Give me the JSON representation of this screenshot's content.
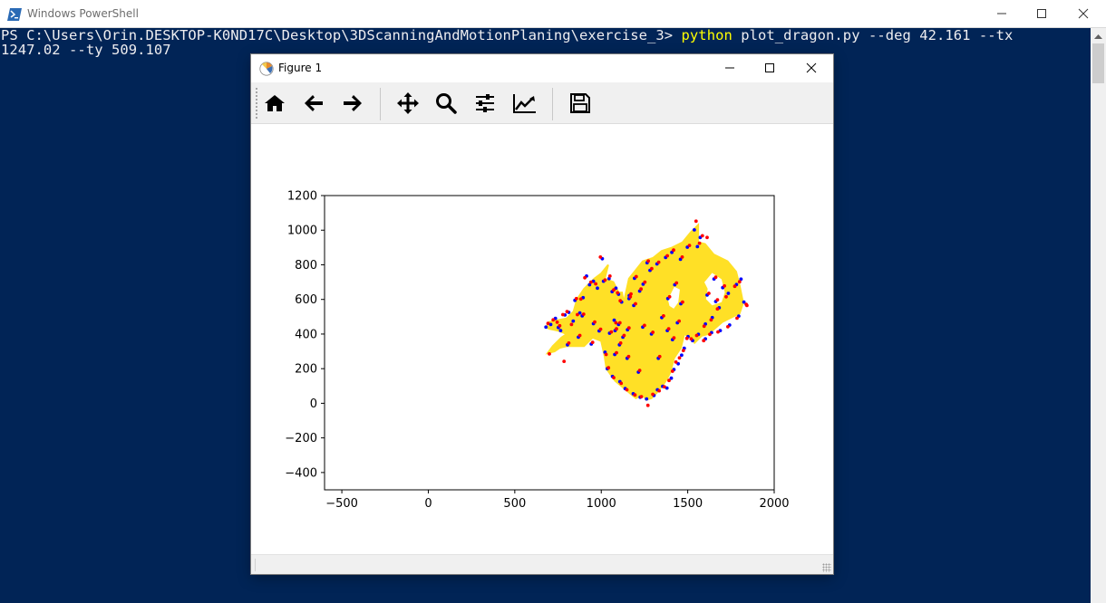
{
  "powershell": {
    "title": "Windows PowerShell",
    "prompt": "PS C:\\Users\\Orin.DESKTOP-K0ND17C\\Desktop\\3DScanningAndMotionPlaning\\exercise_3> ",
    "command_kw": "python",
    "command_rest_line1": " plot_dragon.py --deg 42.161 --tx",
    "command_rest_line2": "1247.02 --ty 509.107"
  },
  "figure": {
    "title": "Figure 1",
    "toolbar": [
      "home-icon",
      "back-icon",
      "forward-icon",
      "pan-icon",
      "zoom-icon",
      "configure-subplots-icon",
      "edit-axis-icon",
      "save-icon"
    ]
  },
  "colors": {
    "console_bg": "#012456",
    "dragon_fill": "#ffe026",
    "source_points": "#0000ff",
    "target_points": "#ff0000"
  },
  "chart_data": {
    "type": "scatter",
    "title": "",
    "xlabel": "",
    "ylabel": "",
    "xlim": [
      -600,
      2000
    ],
    "ylim": [
      -500,
      1200
    ],
    "xticks": [
      -500,
      0,
      500,
      1000,
      1500,
      2000
    ],
    "yticks": [
      -400,
      -200,
      0,
      200,
      400,
      600,
      800,
      1000,
      1200
    ],
    "xtick_labels": [
      "−500",
      "0",
      "500",
      "1000",
      "1500",
      "2000"
    ],
    "ytick_labels": [
      "−400",
      "−200",
      "0",
      "200",
      "400",
      "600",
      "800",
      "1000",
      "1200"
    ],
    "dragon_outline": [
      [
        680,
        440
      ],
      [
        700,
        470
      ],
      [
        750,
        480
      ],
      [
        800,
        490
      ],
      [
        840,
        530
      ],
      [
        860,
        600
      ],
      [
        900,
        660
      ],
      [
        960,
        720
      ],
      [
        1000,
        750
      ],
      [
        1040,
        800
      ],
      [
        1020,
        720
      ],
      [
        1070,
        700
      ],
      [
        1100,
        640
      ],
      [
        1120,
        640
      ],
      [
        1130,
        580
      ],
      [
        1160,
        720
      ],
      [
        1240,
        820
      ],
      [
        1300,
        840
      ],
      [
        1350,
        880
      ],
      [
        1410,
        900
      ],
      [
        1470,
        930
      ],
      [
        1520,
        990
      ],
      [
        1560,
        1030
      ],
      [
        1560,
        930
      ],
      [
        1600,
        920
      ],
      [
        1650,
        860
      ],
      [
        1730,
        820
      ],
      [
        1780,
        760
      ],
      [
        1800,
        680
      ],
      [
        1820,
        580
      ],
      [
        1800,
        520
      ],
      [
        1700,
        470
      ],
      [
        1620,
        400
      ],
      [
        1580,
        390
      ],
      [
        1540,
        350
      ],
      [
        1520,
        380
      ],
      [
        1480,
        400
      ],
      [
        1460,
        320
      ],
      [
        1420,
        260
      ],
      [
        1400,
        180
      ],
      [
        1380,
        140
      ],
      [
        1360,
        110
      ],
      [
        1320,
        60
      ],
      [
        1290,
        30
      ],
      [
        1260,
        20
      ],
      [
        1240,
        50
      ],
      [
        1200,
        30
      ],
      [
        1140,
        80
      ],
      [
        1080,
        130
      ],
      [
        1030,
        200
      ],
      [
        1020,
        270
      ],
      [
        1000,
        360
      ],
      [
        950,
        380
      ],
      [
        900,
        330
      ],
      [
        860,
        330
      ],
      [
        800,
        330
      ],
      [
        760,
        320
      ],
      [
        730,
        300
      ],
      [
        690,
        290
      ],
      [
        720,
        330
      ],
      [
        770,
        380
      ],
      [
        800,
        400
      ],
      [
        750,
        420
      ],
      [
        700,
        430
      ]
    ],
    "dragon_holes": [
      [
        [
          1590,
          700
        ],
        [
          1640,
          760
        ],
        [
          1700,
          720
        ],
        [
          1720,
          640
        ],
        [
          1700,
          580
        ],
        [
          1640,
          560
        ],
        [
          1600,
          600
        ],
        [
          1610,
          660
        ]
      ],
      [
        [
          1380,
          600
        ],
        [
          1420,
          680
        ],
        [
          1460,
          660
        ],
        [
          1450,
          580
        ],
        [
          1420,
          540
        ],
        [
          1390,
          560
        ]
      ]
    ],
    "series": [
      {
        "values": [
          [
            680,
            440
          ],
          [
            708,
            455
          ],
          [
            735,
            490
          ],
          [
            765,
            420
          ],
          [
            790,
            510
          ],
          [
            812,
            525
          ],
          [
            838,
            475
          ],
          [
            876,
            522
          ],
          [
            895,
            610
          ],
          [
            915,
            735
          ],
          [
            932,
            685
          ],
          [
            955,
            705
          ],
          [
            978,
            665
          ],
          [
            1006,
            835
          ],
          [
            1013,
            705
          ],
          [
            1045,
            720
          ],
          [
            1063,
            645
          ],
          [
            1085,
            665
          ],
          [
            1100,
            630
          ],
          [
            1118,
            585
          ],
          [
            1075,
            480
          ],
          [
            1048,
            405
          ],
          [
            1022,
            295
          ],
          [
            1035,
            200
          ],
          [
            1065,
            155
          ],
          [
            1108,
            125
          ],
          [
            1138,
            85
          ],
          [
            1185,
            55
          ],
          [
            1225,
            35
          ],
          [
            1262,
            25
          ],
          [
            1305,
            45
          ],
          [
            1325,
            78
          ],
          [
            1355,
            98
          ],
          [
            1380,
            88
          ],
          [
            1405,
            145
          ],
          [
            1420,
            195
          ],
          [
            1445,
            228
          ],
          [
            1465,
            278
          ],
          [
            1480,
            318
          ],
          [
            1502,
            385
          ],
          [
            1528,
            362
          ],
          [
            1562,
            398
          ],
          [
            1602,
            458
          ],
          [
            1642,
            495
          ],
          [
            1682,
            552
          ],
          [
            1735,
            635
          ],
          [
            1782,
            686
          ],
          [
            1808,
            717
          ],
          [
            1825,
            585
          ],
          [
            1795,
            504
          ],
          [
            1742,
            452
          ],
          [
            1688,
            420
          ],
          [
            1638,
            408
          ],
          [
            1602,
            372
          ],
          [
            1556,
            905
          ],
          [
            1572,
            958
          ],
          [
            1538,
            1002
          ],
          [
            1498,
            902
          ],
          [
            1458,
            832
          ],
          [
            1408,
            872
          ],
          [
            1372,
            842
          ],
          [
            1322,
            805
          ],
          [
            1282,
            768
          ],
          [
            1242,
            688
          ],
          [
            1222,
            648
          ],
          [
            1188,
            565
          ],
          [
            1152,
            425
          ],
          [
            1125,
            382
          ],
          [
            1105,
            338
          ],
          [
            1078,
            282
          ],
          [
            1162,
            622
          ],
          [
            1192,
            722
          ],
          [
            1265,
            812
          ],
          [
            1350,
            495
          ],
          [
            1382,
            420
          ],
          [
            1412,
            368
          ],
          [
            1385,
            605
          ],
          [
            1425,
            685
          ],
          [
            1460,
            575
          ],
          [
            1440,
            465
          ],
          [
            1612,
            625
          ],
          [
            1652,
            718
          ],
          [
            1702,
            668
          ],
          [
            1662,
            588
          ],
          [
            752,
            438
          ],
          [
            805,
            338
          ],
          [
            868,
            382
          ],
          [
            942,
            342
          ],
          [
            988,
            418
          ],
          [
            848,
            595
          ],
          [
            890,
            505
          ],
          [
            1100,
            455
          ],
          [
            1160,
            605
          ],
          [
            1240,
            440
          ],
          [
            1290,
            400
          ],
          [
            1330,
            260
          ],
          [
            1215,
            180
          ],
          [
            1150,
            260
          ],
          [
            1080,
            420
          ],
          [
            955,
            460
          ]
        ]
      },
      {
        "values": [
          [
            692,
            462
          ],
          [
            722,
            482
          ],
          [
            745,
            468
          ],
          [
            778,
            512
          ],
          [
            802,
            530
          ],
          [
            828,
            455
          ],
          [
            862,
            512
          ],
          [
            882,
            602
          ],
          [
            905,
            725
          ],
          [
            940,
            700
          ],
          [
            968,
            690
          ],
          [
            995,
            845
          ],
          [
            1022,
            712
          ],
          [
            1050,
            735
          ],
          [
            1072,
            655
          ],
          [
            1094,
            638
          ],
          [
            1110,
            592
          ],
          [
            1085,
            465
          ],
          [
            1058,
            412
          ],
          [
            1028,
            282
          ],
          [
            1042,
            205
          ],
          [
            1072,
            148
          ],
          [
            1115,
            115
          ],
          [
            1148,
            78
          ],
          [
            1195,
            48
          ],
          [
            1232,
            38
          ],
          [
            1270,
            -12
          ],
          [
            1298,
            52
          ],
          [
            1335,
            72
          ],
          [
            1365,
            95
          ],
          [
            1392,
            132
          ],
          [
            1412,
            185
          ],
          [
            1432,
            238
          ],
          [
            1452,
            262
          ],
          [
            1475,
            305
          ],
          [
            1495,
            375
          ],
          [
            1520,
            372
          ],
          [
            1552,
            392
          ],
          [
            1595,
            445
          ],
          [
            1635,
            482
          ],
          [
            1672,
            545
          ],
          [
            1722,
            615
          ],
          [
            1772,
            676
          ],
          [
            1800,
            702
          ],
          [
            1842,
            565
          ],
          [
            1785,
            492
          ],
          [
            1732,
            442
          ],
          [
            1675,
            412
          ],
          [
            1628,
            398
          ],
          [
            1592,
            362
          ],
          [
            1568,
            925
          ],
          [
            1585,
            968
          ],
          [
            1548,
            1052
          ],
          [
            1510,
            912
          ],
          [
            1468,
            845
          ],
          [
            1418,
            885
          ],
          [
            1382,
            852
          ],
          [
            1332,
            815
          ],
          [
            1292,
            778
          ],
          [
            1252,
            700
          ],
          [
            1230,
            660
          ],
          [
            1198,
            575
          ],
          [
            1160,
            435
          ],
          [
            1132,
            392
          ],
          [
            1112,
            348
          ],
          [
            1088,
            292
          ],
          [
            1172,
            632
          ],
          [
            1202,
            732
          ],
          [
            1272,
            822
          ],
          [
            1360,
            505
          ],
          [
            1390,
            430
          ],
          [
            1420,
            378
          ],
          [
            1395,
            615
          ],
          [
            1435,
            695
          ],
          [
            1470,
            585
          ],
          [
            1450,
            475
          ],
          [
            1622,
            635
          ],
          [
            1662,
            728
          ],
          [
            1712,
            678
          ],
          [
            1672,
            598
          ],
          [
            760,
            448
          ],
          [
            812,
            348
          ],
          [
            876,
            392
          ],
          [
            950,
            352
          ],
          [
            996,
            428
          ],
          [
            856,
            605
          ],
          [
            898,
            515
          ],
          [
            1108,
            465
          ],
          [
            1168,
            615
          ],
          [
            1250,
            450
          ],
          [
            1298,
            410
          ],
          [
            1338,
            270
          ],
          [
            1222,
            190
          ],
          [
            1158,
            270
          ],
          [
            1088,
            430
          ],
          [
            962,
            470
          ],
          [
            700,
            285
          ],
          [
            785,
            242
          ],
          [
            1612,
            958
          ],
          [
            1838,
            572
          ]
        ]
      }
    ]
  }
}
